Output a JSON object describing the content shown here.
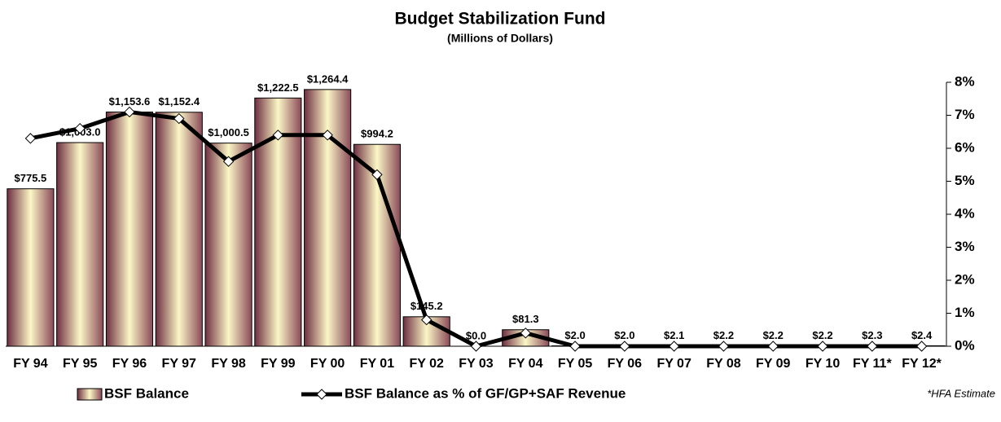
{
  "chart_data": {
    "type": "bar",
    "title": "Budget Stabilization Fund",
    "subtitle": "(Millions of Dollars)",
    "categories": [
      "FY 94",
      "FY 95",
      "FY 96",
      "FY 97",
      "FY 98",
      "FY 99",
      "FY 00",
      "FY 01",
      "FY 02",
      "FY 03",
      "FY 04",
      "FY 05",
      "FY 06",
      "FY 07",
      "FY 08",
      "FY 09",
      "FY 10",
      "FY 11*",
      "FY 12*"
    ],
    "series": [
      {
        "name": "BSF Balance",
        "color": "#7a3a4a",
        "values": [
          775.5,
          1003.0,
          1153.6,
          1152.4,
          1000.5,
          1222.5,
          1264.4,
          994.2,
          145.2,
          0.0,
          81.3,
          2.0,
          2.0,
          2.1,
          2.2,
          2.2,
          2.2,
          2.3,
          2.4
        ],
        "value_labels": [
          "$775.5",
          "$1,003.0",
          "$1,153.6",
          "$1,152.4",
          "$1,000.5",
          "$1,222.5",
          "$1,264.4",
          "$994.2",
          "$145.2",
          "$0.0",
          "$81.3",
          "$2.0",
          "$2.0",
          "$2.1",
          "$2.2",
          "$2.2",
          "$2.2",
          "$2.3",
          "$2.4"
        ]
      },
      {
        "name": "BSF Balance as % of GF/GP+SAF Revenue",
        "color": "#000000",
        "axis": "y2",
        "values": [
          6.3,
          6.6,
          7.1,
          6.9,
          5.6,
          6.4,
          6.4,
          5.2,
          0.8,
          0.0,
          0.4,
          0.0,
          0.0,
          0.0,
          0.0,
          0.0,
          0.0,
          0.0,
          0.0
        ]
      }
    ],
    "ylim": [
      0,
      1300
    ],
    "y2lim": [
      0,
      8
    ],
    "y2ticks": [
      {
        "value": 0,
        "label": "0%"
      },
      {
        "value": 1,
        "label": "1%"
      },
      {
        "value": 2,
        "label": "2%"
      },
      {
        "value": 3,
        "label": "3%"
      },
      {
        "value": 4,
        "label": "4%"
      },
      {
        "value": 5,
        "label": "5%"
      },
      {
        "value": 6,
        "label": "6%"
      },
      {
        "value": 7,
        "label": "7%"
      },
      {
        "value": 8,
        "label": "8%"
      }
    ],
    "note": "*HFA Estimate"
  }
}
